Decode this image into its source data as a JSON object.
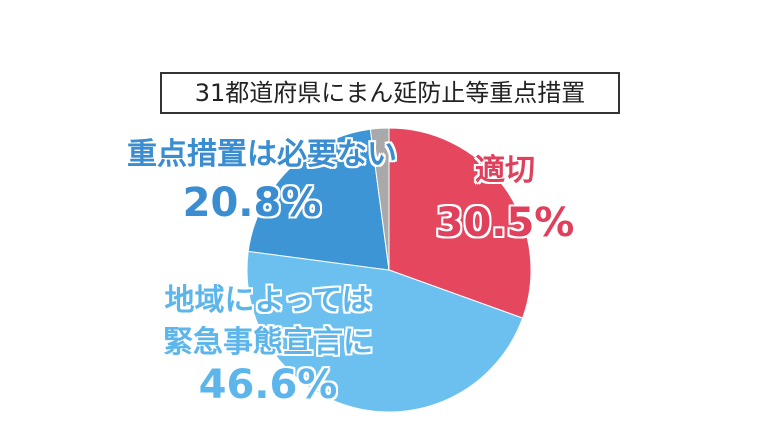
{
  "chart_data": {
    "type": "pie",
    "title": "31都道府県にまん延防止等重点措置",
    "categories": [
      "適切",
      "地域によっては\n緊急事態宣言に",
      "重点措置は必要ない",
      null
    ],
    "values": [
      30.5,
      46.6,
      20.8,
      2.1
    ],
    "value_labels": [
      "30.5%",
      "46.6%",
      "20.8%",
      null
    ],
    "colors": [
      "#e5475f",
      "#6cc0ef",
      "#3d95d5",
      "#a9a9a9"
    ]
  }
}
